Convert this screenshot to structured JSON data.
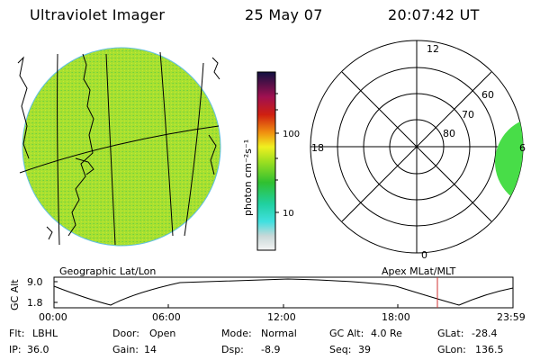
{
  "header": {
    "instrument": "Ultraviolet Imager",
    "date": "25 May 07",
    "time": "20:07:42 UT"
  },
  "colorbar": {
    "unit_label": "photon cm⁻²s⁻¹",
    "tick_labels": [
      "100",
      "10"
    ]
  },
  "polar_plot": {
    "mlt_labels": {
      "top": "12",
      "left": "18",
      "bottom": "0",
      "right": "6"
    },
    "lat_labels": [
      "60",
      "70",
      "80"
    ]
  },
  "orbit_panel": {
    "left_title": "Geographic Lat/Lon",
    "right_title": "Apex MLat/MLT",
    "y_axis_label": "GC Alt",
    "y_ticks": [
      "9.0",
      "1.8"
    ],
    "x_ticks": [
      "00:00",
      "06:00",
      "12:00",
      "18:00",
      "23:59"
    ],
    "current_time_marker": "20:07:42"
  },
  "info_rows": [
    [
      {
        "label": "Flt:",
        "value": "LBHL"
      },
      {
        "label": "Door:",
        "value": "Open"
      },
      {
        "label": "Mode:",
        "value": "Normal"
      },
      {
        "label": "GC Alt:",
        "value": "4.0 Re"
      },
      {
        "label": "GLat:",
        "value": "-28.4"
      }
    ],
    [
      {
        "label": "IP:",
        "value": "36.0"
      },
      {
        "label": "Gain:",
        "value": "14"
      },
      {
        "label": "Dsp:",
        "value": "-8.9"
      },
      {
        "label": "Seq:",
        "value": "39"
      },
      {
        "label": "GLon:",
        "value": "136.5"
      }
    ]
  ],
  "colors": {
    "disk_fill": "#a8e030",
    "cap_fill": "#48dd48",
    "marker": "#d03030"
  }
}
